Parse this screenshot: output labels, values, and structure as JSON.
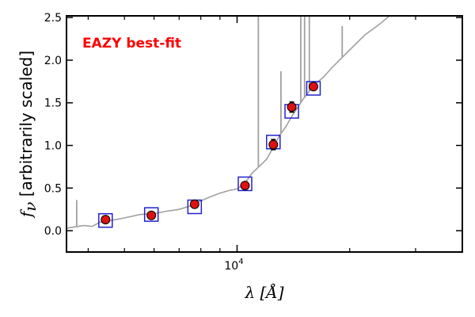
{
  "chart_data": {
    "type": "scatter",
    "title": "",
    "annotation": "EAZY best-fit",
    "annotation_color": "#ff0000",
    "xlabel": "λ [Å]",
    "xlabel_symbol": "λ",
    "xlabel_unit": "[Å]",
    "ylabel": "fν [arbitrarily scaled]",
    "ylabel_symbol": "f",
    "ylabel_sub": "ν",
    "ylabel_text": "[arbitrarily scaled]",
    "x_scale": "log",
    "xlim": [
      3500,
      40000
    ],
    "ylim": [
      -0.25,
      2.52
    ],
    "x_tick_labels": [
      {
        "value": 10000,
        "base": "10",
        "exp": "4"
      }
    ],
    "y_ticks": [
      0.0,
      0.5,
      1.0,
      1.5,
      2.0,
      2.5
    ],
    "y_tick_labels": [
      "0.0",
      "0.5",
      "1.0",
      "1.5",
      "2.0",
      "2.5"
    ],
    "grid": false,
    "colors": {
      "model_line": "#a0a0a0",
      "observed_marker": "#dd1111",
      "model_box": "#2222cc",
      "error_bar": "#000000"
    },
    "series": [
      {
        "name": "",
        "kind": "observed",
        "x": [
          4450,
          5900,
          7700,
          10500,
          12500,
          14000,
          16000
        ],
        "y": [
          0.13,
          0.18,
          0.31,
          0.53,
          1.01,
          1.45,
          1.69
        ],
        "yerr": [
          0.02,
          0.02,
          0.02,
          0.03,
          0.06,
          0.06,
          0.04
        ]
      },
      {
        "name": "",
        "kind": "model_photometry",
        "x": [
          4450,
          5900,
          7700,
          10500,
          12500,
          14000,
          16000
        ],
        "y": [
          0.12,
          0.19,
          0.28,
          0.55,
          1.04,
          1.4,
          1.67
        ]
      },
      {
        "name": "",
        "kind": "model_spectrum",
        "x": [
          3500,
          3900,
          4100,
          4300,
          4600,
          5000,
          5500,
          6000,
          6500,
          7000,
          7500,
          8000,
          8500,
          9000,
          9500,
          10000,
          10500,
          11000,
          11500,
          12000,
          12500,
          13000,
          13500,
          14000,
          14500,
          15000,
          15500,
          16000,
          17000,
          18000,
          20000,
          22000,
          24000,
          26000
        ],
        "y": [
          0.03,
          0.06,
          0.05,
          0.1,
          0.12,
          0.15,
          0.19,
          0.2,
          0.23,
          0.25,
          0.29,
          0.35,
          0.4,
          0.44,
          0.47,
          0.49,
          0.56,
          0.68,
          0.76,
          0.84,
          0.98,
          1.12,
          1.22,
          1.34,
          1.44,
          1.54,
          1.62,
          1.7,
          1.8,
          1.92,
          2.12,
          2.3,
          2.42,
          2.55
        ]
      }
    ],
    "emission_lines": [
      {
        "x": 3727,
        "y": 0.36
      },
      {
        "x": 11400,
        "y": 2.52
      },
      {
        "x": 13100,
        "y": 1.87
      },
      {
        "x": 14800,
        "y": 2.52
      },
      {
        "x": 15150,
        "y": 2.52
      },
      {
        "x": 15600,
        "y": 2.52
      },
      {
        "x": 19100,
        "y": 2.4
      }
    ]
  }
}
